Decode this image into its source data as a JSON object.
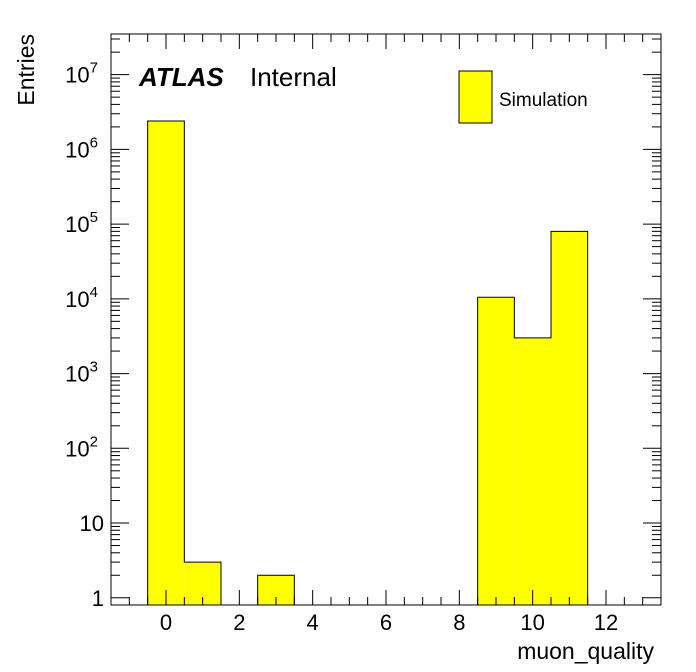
{
  "chart_data": {
    "type": "bar",
    "xlabel": "muon_quality",
    "ylabel": "Entries",
    "xlim": [
      -1.5,
      13.5
    ],
    "ylim": [
      0.8,
      35000000
    ],
    "log_y": true,
    "bin_width": 1,
    "bins": [
      {
        "x": 0,
        "value": 2400000
      },
      {
        "x": 1,
        "value": 3
      },
      {
        "x": 2,
        "value": 0
      },
      {
        "x": 3,
        "value": 2
      },
      {
        "x": 4,
        "value": 0
      },
      {
        "x": 5,
        "value": 0
      },
      {
        "x": 6,
        "value": 0
      },
      {
        "x": 7,
        "value": 0
      },
      {
        "x": 8,
        "value": 0
      },
      {
        "x": 9,
        "value": 10500
      },
      {
        "x": 10,
        "value": 3000
      },
      {
        "x": 11,
        "value": 80000
      },
      {
        "x": 12,
        "value": 0
      }
    ],
    "series": [
      {
        "name": "Simulation",
        "color": "#ffff00"
      }
    ],
    "x_ticks": [
      "0",
      "2",
      "4",
      "6",
      "8",
      "10",
      "12"
    ],
    "y_ticks": [
      {
        "value": 1,
        "mantissa": "1",
        "exp": ""
      },
      {
        "value": 10,
        "mantissa": "10",
        "exp": ""
      },
      {
        "value": 100,
        "mantissa": "10",
        "exp": "2"
      },
      {
        "value": 1000,
        "mantissa": "10",
        "exp": "3"
      },
      {
        "value": 10000,
        "mantissa": "10",
        "exp": "4"
      },
      {
        "value": 100000,
        "mantissa": "10",
        "exp": "5"
      },
      {
        "value": 1000000,
        "mantissa": "10",
        "exp": "6"
      },
      {
        "value": 10000000,
        "mantissa": "10",
        "exp": "7"
      }
    ],
    "grid": false,
    "legend_position": "top-right",
    "label_atlas": "ATLAS",
    "label_status": "Internal"
  }
}
